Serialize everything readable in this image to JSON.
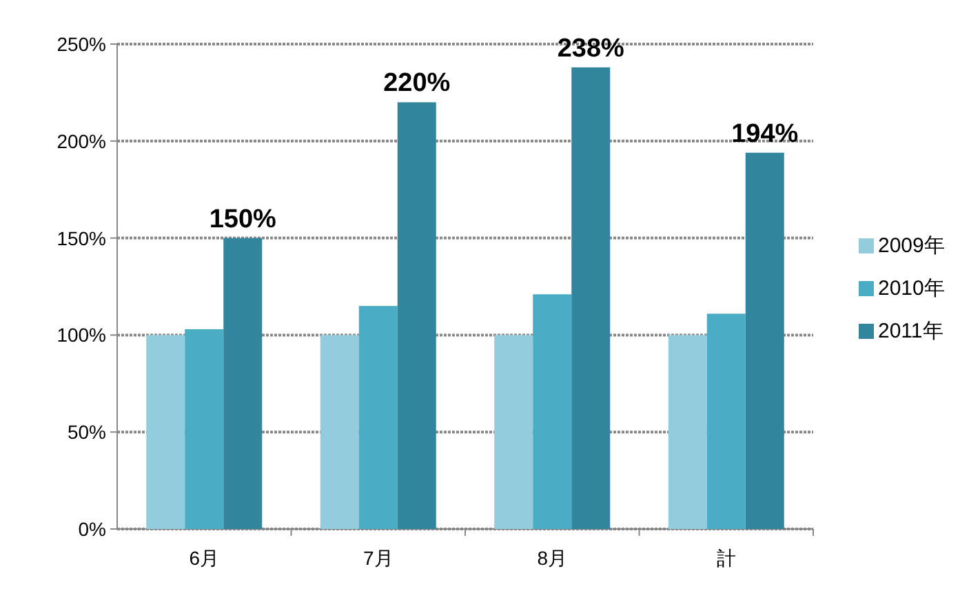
{
  "chart_data": {
    "type": "bar",
    "categories": [
      "6月",
      "7月",
      "8月",
      "計"
    ],
    "series": [
      {
        "name": "2009年",
        "color": "#93cddd",
        "values": [
          100,
          100,
          100,
          100
        ]
      },
      {
        "name": "2010年",
        "color": "#4bacc6",
        "values": [
          103,
          115,
          121,
          111
        ]
      },
      {
        "name": "2011年",
        "color": "#31859c",
        "values": [
          150,
          220,
          238,
          194
        ],
        "value_labels": [
          "150%",
          "220%",
          "238%",
          "194%"
        ]
      }
    ],
    "ylim": [
      0,
      250
    ],
    "yticks": [
      {
        "value": 0,
        "label": "0%"
      },
      {
        "value": 50,
        "label": "50%"
      },
      {
        "value": 100,
        "label": "100%"
      },
      {
        "value": 150,
        "label": "150%"
      },
      {
        "value": 200,
        "label": "200%"
      },
      {
        "value": 250,
        "label": "250%"
      }
    ],
    "grid": "y",
    "legend": "right"
  }
}
